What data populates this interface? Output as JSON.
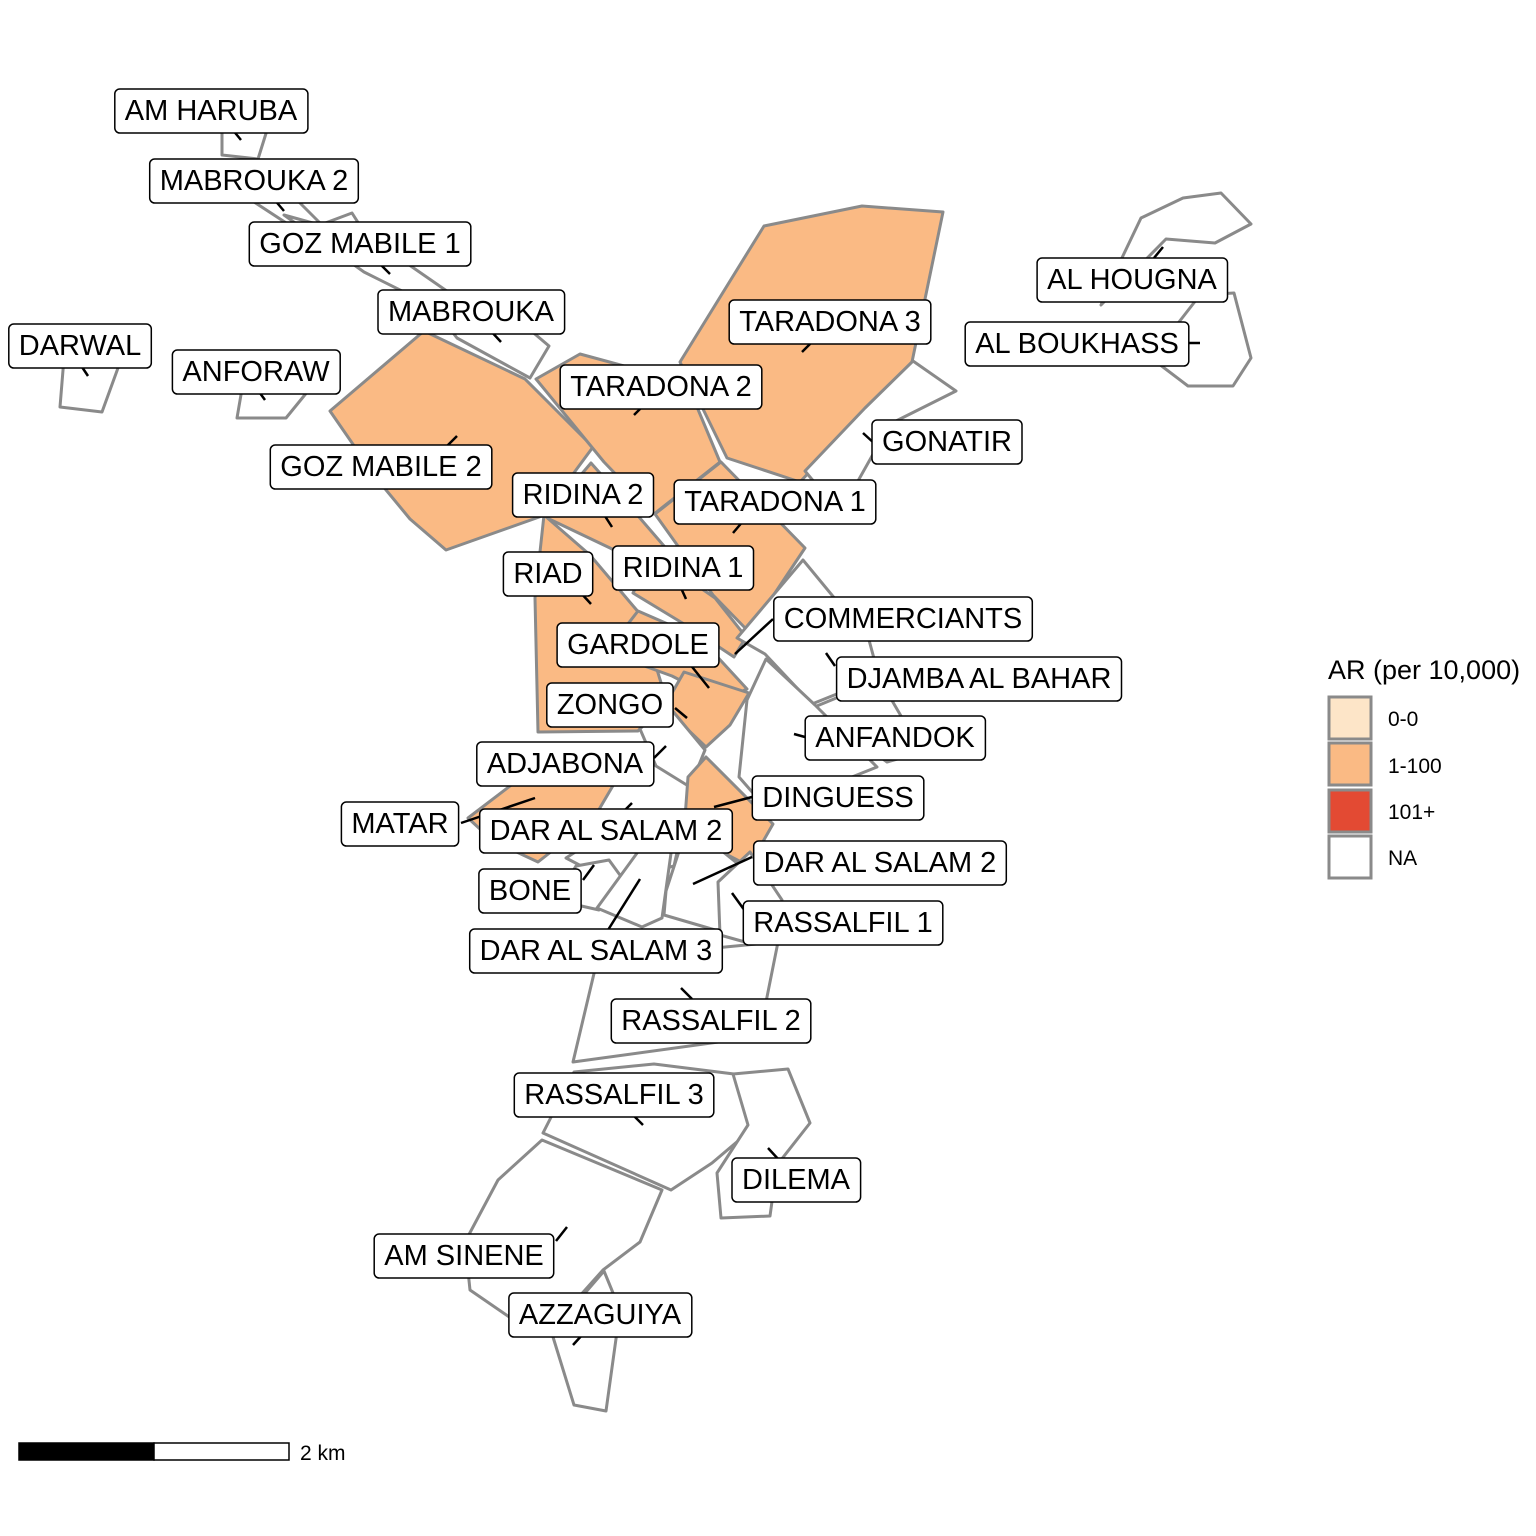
{
  "legend": {
    "title": "AR (per 10,000)",
    "items": [
      {
        "label": "0-0",
        "color": "#FDE5C8"
      },
      {
        "label": "1-100",
        "color": "#FABA84"
      },
      {
        "label": "101+",
        "color": "#E34A33"
      },
      {
        "label": "NA",
        "color": "#FFFFFF"
      }
    ]
  },
  "scale_bar": {
    "label": "2 km"
  },
  "zones": [
    {
      "id": "am-haruba",
      "label": "AM HARUBA",
      "category": "NA"
    },
    {
      "id": "mabrouka-2",
      "label": "MABROUKA 2",
      "category": "NA"
    },
    {
      "id": "goz-mabile-1",
      "label": "GOZ MABILE 1",
      "category": "NA"
    },
    {
      "id": "mabrouka",
      "label": "MABROUKA",
      "category": "NA"
    },
    {
      "id": "darwal",
      "label": "DARWAL",
      "category": "NA"
    },
    {
      "id": "anforaw",
      "label": "ANFORAW",
      "category": "NA"
    },
    {
      "id": "goz-mabile-2",
      "label": "GOZ MABILE 2",
      "category": "1-100"
    },
    {
      "id": "taradona-3",
      "label": "TARADONA 3",
      "category": "1-100"
    },
    {
      "id": "taradona-2",
      "label": "TARADONA 2",
      "category": "1-100"
    },
    {
      "id": "al-hougna",
      "label": "AL HOUGNA",
      "category": "NA"
    },
    {
      "id": "al-boukhass",
      "label": "AL BOUKHASS",
      "category": "NA"
    },
    {
      "id": "gonatir",
      "label": "GONATIR",
      "category": "NA"
    },
    {
      "id": "ridina-2",
      "label": "RIDINA 2",
      "category": "1-100"
    },
    {
      "id": "taradona-1",
      "label": "TARADONA 1",
      "category": "1-100"
    },
    {
      "id": "riad",
      "label": "RIAD",
      "category": "1-100"
    },
    {
      "id": "ridina-1",
      "label": "RIDINA 1",
      "category": "1-100"
    },
    {
      "id": "commerciants",
      "label": "COMMERCIANTS",
      "category": "NA"
    },
    {
      "id": "gardole",
      "label": "GARDOLE",
      "category": "1-100"
    },
    {
      "id": "djamba-al-bahar",
      "label": "DJAMBA AL BAHAR",
      "category": "NA"
    },
    {
      "id": "zongo",
      "label": "ZONGO",
      "category": "1-100"
    },
    {
      "id": "anfandok",
      "label": "ANFANDOK",
      "category": "NA"
    },
    {
      "id": "adjabona",
      "label": "ADJABONA",
      "category": "NA"
    },
    {
      "id": "dinguess",
      "label": "DINGUESS",
      "category": "1-100"
    },
    {
      "id": "matar",
      "label": "MATAR",
      "category": "1-100"
    },
    {
      "id": "dar-al-salam-2-w",
      "label": "DAR AL SALAM 2",
      "category": "NA"
    },
    {
      "id": "dar-al-salam-2-e",
      "label": "DAR AL SALAM 2",
      "category": "NA"
    },
    {
      "id": "bone",
      "label": "BONE",
      "category": "NA"
    },
    {
      "id": "rassalfil-1",
      "label": "RASSALFIL 1",
      "category": "NA"
    },
    {
      "id": "dar-al-salam-3",
      "label": "DAR AL SALAM 3",
      "category": "NA"
    },
    {
      "id": "rassalfil-2",
      "label": "RASSALFIL 2",
      "category": "NA"
    },
    {
      "id": "rassalfil-3",
      "label": "RASSALFIL 3",
      "category": "NA"
    },
    {
      "id": "dilema",
      "label": "DILEMA",
      "category": "NA"
    },
    {
      "id": "am-sinene",
      "label": "AM SINENE",
      "category": "NA"
    },
    {
      "id": "azzaguiya",
      "label": "AZZAGUIYA",
      "category": "NA"
    }
  ]
}
